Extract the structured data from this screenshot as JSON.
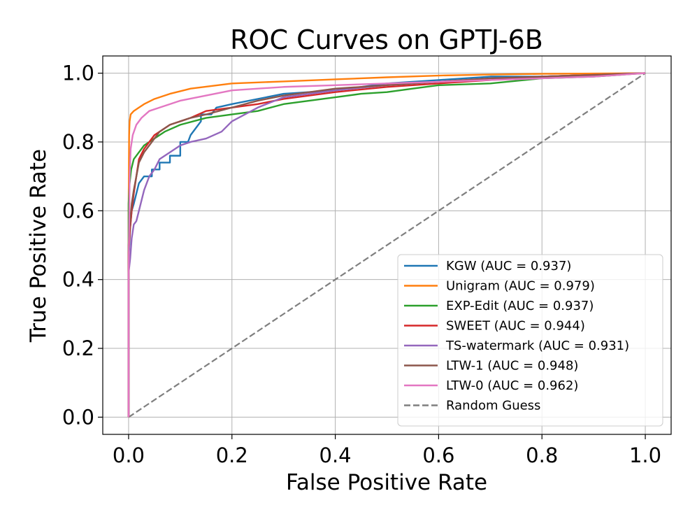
{
  "chart_data": {
    "type": "line",
    "title": "ROC Curves on GPTJ-6B",
    "xlabel": "False Positive Rate",
    "ylabel": "True Positive Rate",
    "xlim": [
      -0.05,
      1.05
    ],
    "ylim": [
      -0.05,
      1.05
    ],
    "x_ticks": [
      0.0,
      0.2,
      0.4,
      0.6,
      0.8,
      1.0
    ],
    "x_tick_labels": [
      "0.0",
      "0.2",
      "0.4",
      "0.6",
      "0.8",
      "1.0"
    ],
    "y_ticks": [
      0.0,
      0.2,
      0.4,
      0.6,
      0.8,
      1.0
    ],
    "y_tick_labels": [
      "0.0",
      "0.2",
      "0.4",
      "0.6",
      "0.8",
      "1.0"
    ],
    "grid": true,
    "legend_position": "lower-right",
    "series": [
      {
        "name": "KGW (AUC = 0.937)",
        "color": "#1f77b4",
        "dashed": false,
        "points": [
          [
            0,
            0
          ],
          [
            0,
            0.45
          ],
          [
            0.003,
            0.55
          ],
          [
            0.006,
            0.6
          ],
          [
            0.01,
            0.62
          ],
          [
            0.015,
            0.65
          ],
          [
            0.02,
            0.68
          ],
          [
            0.03,
            0.7
          ],
          [
            0.045,
            0.7
          ],
          [
            0.045,
            0.72
          ],
          [
            0.06,
            0.72
          ],
          [
            0.06,
            0.74
          ],
          [
            0.08,
            0.74
          ],
          [
            0.08,
            0.76
          ],
          [
            0.1,
            0.76
          ],
          [
            0.1,
            0.8
          ],
          [
            0.115,
            0.8
          ],
          [
            0.12,
            0.82
          ],
          [
            0.13,
            0.84
          ],
          [
            0.14,
            0.86
          ],
          [
            0.14,
            0.88
          ],
          [
            0.16,
            0.88
          ],
          [
            0.165,
            0.89
          ],
          [
            0.17,
            0.9
          ],
          [
            0.2,
            0.91
          ],
          [
            0.3,
            0.94
          ],
          [
            0.4,
            0.95
          ],
          [
            0.5,
            0.97
          ],
          [
            0.6,
            0.98
          ],
          [
            0.7,
            0.99
          ],
          [
            0.8,
            0.99
          ],
          [
            0.9,
            0.995
          ],
          [
            1.0,
            1.0
          ]
        ]
      },
      {
        "name": "Unigram (AUC = 0.979)",
        "color": "#ff7f0e",
        "dashed": false,
        "points": [
          [
            0,
            0
          ],
          [
            0,
            0.6
          ],
          [
            0.001,
            0.82
          ],
          [
            0.002,
            0.86
          ],
          [
            0.004,
            0.88
          ],
          [
            0.01,
            0.89
          ],
          [
            0.02,
            0.9
          ],
          [
            0.03,
            0.91
          ],
          [
            0.05,
            0.925
          ],
          [
            0.08,
            0.94
          ],
          [
            0.12,
            0.955
          ],
          [
            0.2,
            0.97
          ],
          [
            0.3,
            0.976
          ],
          [
            0.4,
            0.982
          ],
          [
            0.5,
            0.988
          ],
          [
            0.6,
            0.993
          ],
          [
            0.7,
            0.996
          ],
          [
            0.8,
            0.998
          ],
          [
            1.0,
            1.0
          ]
        ]
      },
      {
        "name": "EXP-Edit (AUC = 0.937)",
        "color": "#2ca02c",
        "dashed": false,
        "points": [
          [
            0,
            0
          ],
          [
            0,
            0.62
          ],
          [
            0.002,
            0.68
          ],
          [
            0.005,
            0.72
          ],
          [
            0.01,
            0.75
          ],
          [
            0.02,
            0.77
          ],
          [
            0.03,
            0.79
          ],
          [
            0.05,
            0.81
          ],
          [
            0.07,
            0.83
          ],
          [
            0.1,
            0.85
          ],
          [
            0.15,
            0.87
          ],
          [
            0.2,
            0.88
          ],
          [
            0.25,
            0.89
          ],
          [
            0.3,
            0.91
          ],
          [
            0.35,
            0.92
          ],
          [
            0.4,
            0.93
          ],
          [
            0.45,
            0.94
          ],
          [
            0.5,
            0.945
          ],
          [
            0.55,
            0.955
          ],
          [
            0.6,
            0.965
          ],
          [
            0.7,
            0.97
          ],
          [
            0.8,
            0.985
          ],
          [
            0.9,
            0.99
          ],
          [
            1.0,
            1.0
          ]
        ]
      },
      {
        "name": "SWEET (AUC = 0.944)",
        "color": "#d62728",
        "dashed": false,
        "points": [
          [
            0,
            0
          ],
          [
            0,
            0.48
          ],
          [
            0.003,
            0.55
          ],
          [
            0.006,
            0.6
          ],
          [
            0.01,
            0.65
          ],
          [
            0.015,
            0.7
          ],
          [
            0.02,
            0.75
          ],
          [
            0.03,
            0.78
          ],
          [
            0.04,
            0.8
          ],
          [
            0.05,
            0.82
          ],
          [
            0.06,
            0.83
          ],
          [
            0.08,
            0.85
          ],
          [
            0.1,
            0.86
          ],
          [
            0.12,
            0.87
          ],
          [
            0.15,
            0.89
          ],
          [
            0.2,
            0.9
          ],
          [
            0.25,
            0.91
          ],
          [
            0.3,
            0.925
          ],
          [
            0.35,
            0.935
          ],
          [
            0.4,
            0.945
          ],
          [
            0.5,
            0.96
          ],
          [
            0.6,
            0.97
          ],
          [
            0.7,
            0.98
          ],
          [
            0.8,
            0.99
          ],
          [
            0.9,
            0.995
          ],
          [
            1.0,
            1.0
          ]
        ]
      },
      {
        "name": "TS-watermark (AUC = 0.931)",
        "color": "#9467bd",
        "dashed": false,
        "points": [
          [
            0,
            0
          ],
          [
            0,
            0.42
          ],
          [
            0.003,
            0.46
          ],
          [
            0.006,
            0.52
          ],
          [
            0.01,
            0.56
          ],
          [
            0.015,
            0.57
          ],
          [
            0.02,
            0.6
          ],
          [
            0.025,
            0.63
          ],
          [
            0.03,
            0.66
          ],
          [
            0.04,
            0.7
          ],
          [
            0.05,
            0.72
          ],
          [
            0.06,
            0.75
          ],
          [
            0.08,
            0.77
          ],
          [
            0.1,
            0.79
          ],
          [
            0.12,
            0.8
          ],
          [
            0.15,
            0.81
          ],
          [
            0.18,
            0.83
          ],
          [
            0.2,
            0.86
          ],
          [
            0.25,
            0.9
          ],
          [
            0.3,
            0.93
          ],
          [
            0.4,
            0.95
          ],
          [
            0.5,
            0.965
          ],
          [
            0.6,
            0.975
          ],
          [
            0.7,
            0.985
          ],
          [
            0.8,
            0.99
          ],
          [
            0.9,
            0.995
          ],
          [
            1.0,
            1.0
          ]
        ]
      },
      {
        "name": "LTW-1 (AUC = 0.948)",
        "color": "#8c564b",
        "dashed": false,
        "points": [
          [
            0,
            0
          ],
          [
            0,
            0.5
          ],
          [
            0.003,
            0.57
          ],
          [
            0.006,
            0.62
          ],
          [
            0.01,
            0.66
          ],
          [
            0.015,
            0.7
          ],
          [
            0.02,
            0.74
          ],
          [
            0.03,
            0.77
          ],
          [
            0.04,
            0.79
          ],
          [
            0.05,
            0.81
          ],
          [
            0.06,
            0.83
          ],
          [
            0.08,
            0.85
          ],
          [
            0.1,
            0.86
          ],
          [
            0.12,
            0.87
          ],
          [
            0.15,
            0.88
          ],
          [
            0.2,
            0.9
          ],
          [
            0.25,
            0.92
          ],
          [
            0.3,
            0.935
          ],
          [
            0.35,
            0.945
          ],
          [
            0.4,
            0.955
          ],
          [
            0.5,
            0.965
          ],
          [
            0.6,
            0.975
          ],
          [
            0.7,
            0.985
          ],
          [
            0.8,
            0.99
          ],
          [
            0.9,
            0.995
          ],
          [
            1.0,
            1.0
          ]
        ]
      },
      {
        "name": "LTW-0 (AUC = 0.962)",
        "color": "#e377c2",
        "dashed": false,
        "points": [
          [
            0,
            0
          ],
          [
            0,
            0.4
          ],
          [
            0.002,
            0.7
          ],
          [
            0.004,
            0.78
          ],
          [
            0.008,
            0.82
          ],
          [
            0.015,
            0.85
          ],
          [
            0.025,
            0.87
          ],
          [
            0.04,
            0.89
          ],
          [
            0.06,
            0.9
          ],
          [
            0.08,
            0.91
          ],
          [
            0.1,
            0.92
          ],
          [
            0.15,
            0.935
          ],
          [
            0.2,
            0.95
          ],
          [
            0.3,
            0.96
          ],
          [
            0.4,
            0.965
          ],
          [
            0.5,
            0.97
          ],
          [
            0.6,
            0.975
          ],
          [
            0.7,
            0.98
          ],
          [
            0.8,
            0.985
          ],
          [
            0.9,
            0.99
          ],
          [
            1.0,
            1.0
          ]
        ]
      },
      {
        "name": "Random Guess",
        "color": "#7f7f7f",
        "dashed": true,
        "points": [
          [
            0,
            0
          ],
          [
            1.0,
            1.0
          ]
        ]
      }
    ]
  }
}
